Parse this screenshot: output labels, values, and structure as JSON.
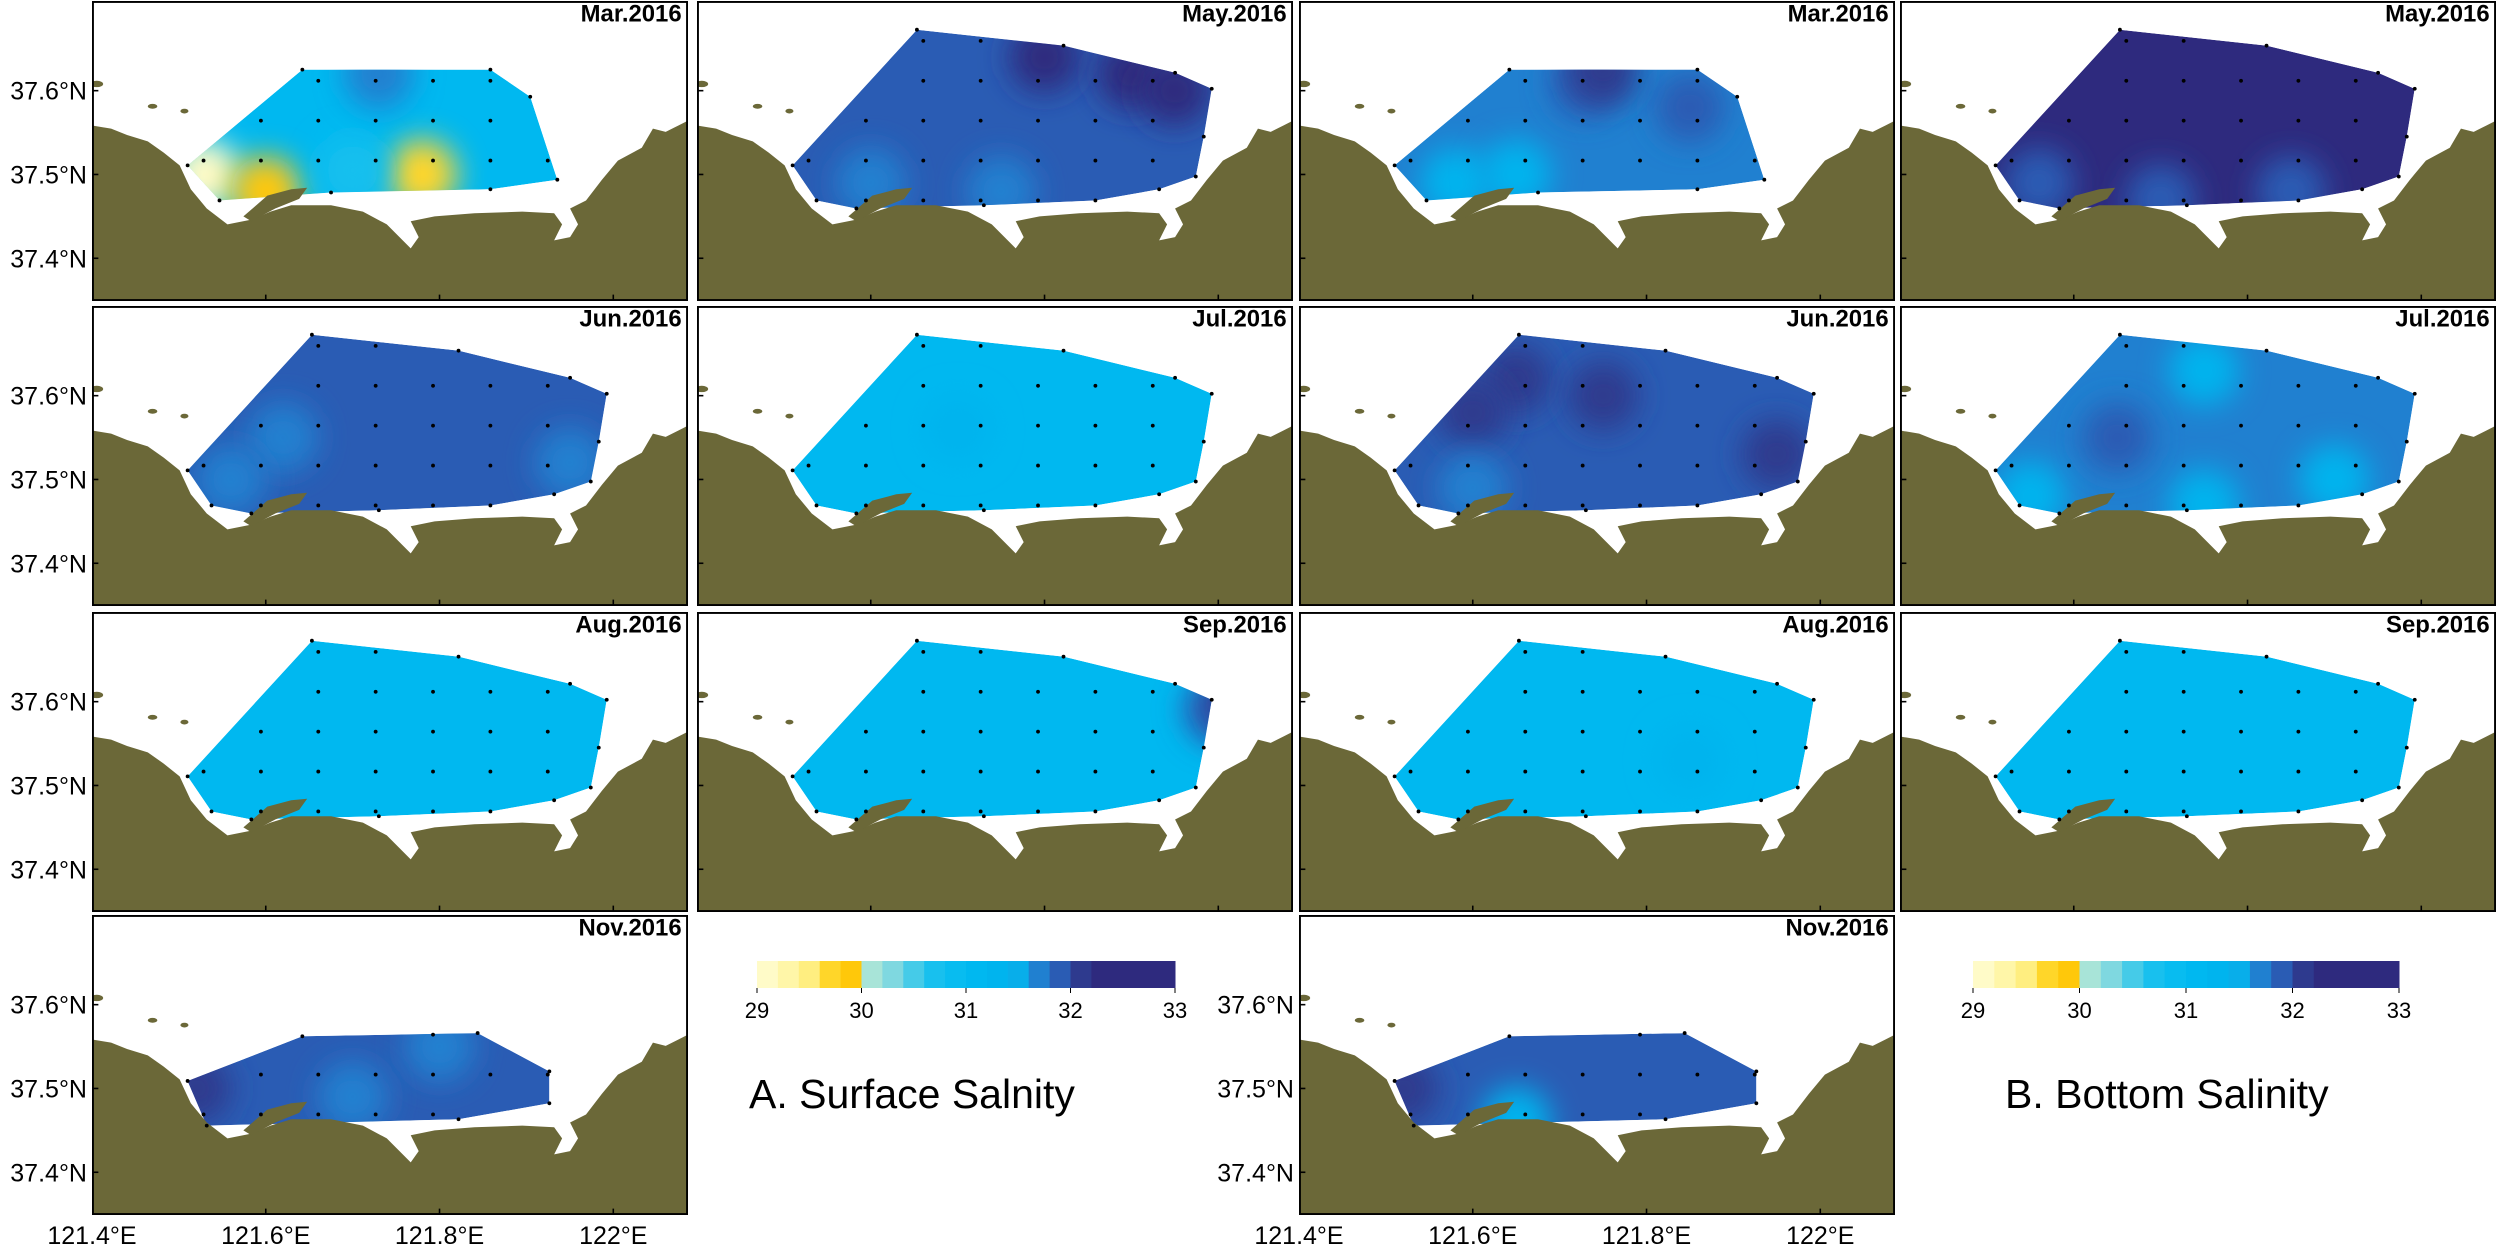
{
  "map": {
    "lonlim": [
      121.4,
      122.086
    ],
    "latlim": [
      37.349,
      37.707
    ],
    "lonticks": [
      {
        "value": 121.4,
        "label": "121.4°E"
      },
      {
        "value": 121.6,
        "label": "121.6°E"
      },
      {
        "value": 121.8,
        "label": "121.8°E"
      },
      {
        "value": 122,
        "label": "122°E"
      }
    ],
    "latticks": [
      {
        "value": 37.6,
        "label": "37.6°N"
      },
      {
        "value": 37.5,
        "label": "37.5°N"
      },
      {
        "value": 37.4,
        "label": "37.4°N"
      }
    ]
  },
  "colorbar": {
    "lim": [
      29,
      33
    ],
    "ticks": [
      29,
      30,
      31,
      32,
      33
    ],
    "colors": [
      "#fffbc8",
      "#fff6a8",
      "#ffee80",
      "#ffd629",
      "#ffc80a",
      "#a8e4d8",
      "#7fd8e0",
      "#45cbe8",
      "#18c0ee",
      "#08bcf0",
      "#00b8f0",
      "#00b4ee",
      "#08aeea",
      "#2080d0",
      "#2a5cb4",
      "#2e3a8e",
      "#2e2a7e",
      "#2e2a7e",
      "#2e2a7e",
      "#2e2a7e"
    ]
  },
  "groups": [
    {
      "label": "A. Surface Salnity",
      "panels": [
        {
          "title": "Mar.2016",
          "salinity": 31.2,
          "patches": [
            {
              "lon": 121.53,
              "lat": 37.5,
              "salinity": 29.2
            },
            {
              "lon": 121.6,
              "lat": 37.48,
              "salinity": 29.8
            },
            {
              "lon": 121.78,
              "lat": 37.5,
              "salinity": 29.6
            },
            {
              "lon": 121.7,
              "lat": 37.505,
              "salinity": 30.6
            },
            {
              "lon": 121.73,
              "lat": 37.62,
              "salinity": 31.6
            }
          ]
        },
        {
          "title": "May.2016",
          "salinity": 31.8,
          "patches": [
            {
              "lon": 121.8,
              "lat": 37.64,
              "salinity": 32.2
            },
            {
              "lon": 121.9,
              "lat": 37.62,
              "salinity": 32.2
            },
            {
              "lon": 121.95,
              "lat": 37.6,
              "salinity": 32.2
            },
            {
              "lon": 121.6,
              "lat": 37.49,
              "salinity": 31.6
            },
            {
              "lon": 121.75,
              "lat": 37.48,
              "salinity": 31.6
            }
          ]
        },
        {
          "title": "Jun.2016",
          "salinity": 31.8,
          "patches": [
            {
              "lon": 121.62,
              "lat": 37.55,
              "salinity": 31.6
            },
            {
              "lon": 121.56,
              "lat": 37.5,
              "salinity": 31.6
            },
            {
              "lon": 121.95,
              "lat": 37.52,
              "salinity": 31.6
            }
          ]
        },
        {
          "title": "Jul.2016",
          "salinity": 31.2,
          "patches": [
            {
              "lon": 121.7,
              "lat": 37.56,
              "salinity": 31.4
            }
          ]
        },
        {
          "title": "Aug.2016",
          "salinity": 31.2,
          "patches": []
        },
        {
          "title": "Sep.2016",
          "salinity": 31.2,
          "patches": [
            {
              "lon": 122.0,
              "lat": 37.59,
              "salinity": 31.8
            },
            {
              "lon": 122.03,
              "lat": 37.6,
              "salinity": 32.1
            }
          ]
        },
        {
          "title": "Nov.2016",
          "salinity": 31.8,
          "patches": [
            {
              "lon": 121.8,
              "lat": 37.55,
              "salinity": 31.6
            },
            {
              "lon": 121.7,
              "lat": 37.49,
              "salinity": 31.6
            },
            {
              "lon": 121.52,
              "lat": 37.5,
              "salinity": 32.0
            }
          ]
        }
      ]
    },
    {
      "label": "B. Bottom Salinity",
      "panels": [
        {
          "title": "Mar.2016",
          "salinity": 31.6,
          "patches": [
            {
              "lon": 121.58,
              "lat": 37.49,
              "salinity": 31.4
            },
            {
              "lon": 121.65,
              "lat": 37.5,
              "salinity": 31.4
            },
            {
              "lon": 121.73,
              "lat": 37.61,
              "salinity": 31.8
            },
            {
              "lon": 121.85,
              "lat": 37.58,
              "salinity": 31.8
            },
            {
              "lon": 121.75,
              "lat": 37.625,
              "salinity": 32.0
            }
          ]
        },
        {
          "title": "May.2016",
          "salinity": 32.2,
          "patches": [
            {
              "lon": 121.56,
              "lat": 37.49,
              "salinity": 31.8
            },
            {
              "lon": 121.7,
              "lat": 37.47,
              "salinity": 31.8
            },
            {
              "lon": 121.85,
              "lat": 37.48,
              "salinity": 31.8
            }
          ]
        },
        {
          "title": "Jun.2016",
          "salinity": 31.8,
          "patches": [
            {
              "lon": 121.65,
              "lat": 37.62,
              "salinity": 32.0
            },
            {
              "lon": 121.75,
              "lat": 37.6,
              "salinity": 32.0
            },
            {
              "lon": 121.6,
              "lat": 37.58,
              "salinity": 32.0
            },
            {
              "lon": 121.95,
              "lat": 37.53,
              "salinity": 32.0
            },
            {
              "lon": 121.6,
              "lat": 37.49,
              "salinity": 31.6
            }
          ]
        },
        {
          "title": "Jul.2016",
          "salinity": 31.6,
          "patches": [
            {
              "lon": 121.55,
              "lat": 37.48,
              "salinity": 31.4
            },
            {
              "lon": 121.75,
              "lat": 37.47,
              "salinity": 31.4
            },
            {
              "lon": 121.9,
              "lat": 37.5,
              "salinity": 31.4
            },
            {
              "lon": 121.75,
              "lat": 37.63,
              "salinity": 31.4
            },
            {
              "lon": 121.65,
              "lat": 37.55,
              "salinity": 31.8
            }
          ]
        },
        {
          "title": "Aug.2016",
          "salinity": 31.2,
          "patches": [
            {
              "lon": 121.85,
              "lat": 37.53,
              "salinity": 31.4
            }
          ]
        },
        {
          "title": "Sep.2016",
          "salinity": 31.2,
          "patches": []
        },
        {
          "title": "Nov.2016",
          "salinity": 31.8,
          "patches": [
            {
              "lon": 121.65,
              "lat": 37.46,
              "salinity": 31.4
            },
            {
              "lon": 121.52,
              "lat": 37.5,
              "salinity": 32.0
            }
          ]
        }
      ]
    }
  ]
}
